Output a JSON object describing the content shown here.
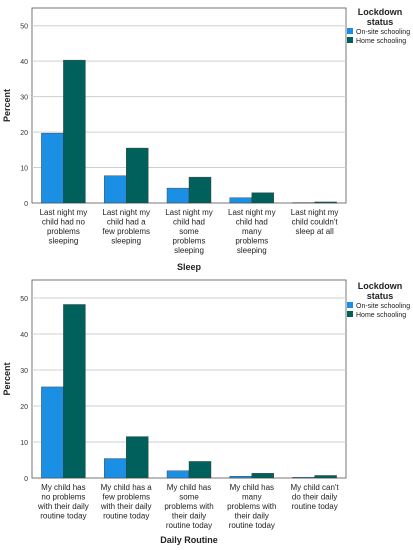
{
  "colors": {
    "onsite": "#1a8fe3",
    "home": "#00605c",
    "grid": "#cfcfcf",
    "axis": "#555555"
  },
  "chart_data": [
    {
      "type": "bar",
      "xlabel": "Sleep",
      "ylabel": "Percent",
      "ylim": [
        0,
        55
      ],
      "yticks": [
        0,
        10,
        20,
        30,
        40,
        50
      ],
      "grid": true,
      "legend_position": "top-right",
      "legend_title": "Lockdown status",
      "categories": [
        "Last night my child had no problems sleeping",
        "Last night my child had a few problems sleeping",
        "Last night my child had some problems sleeping",
        "Last night my child had many problems sleeping",
        "Last night my child couldn't sleep at all"
      ],
      "category_lines": [
        [
          "Last night my",
          "child had no",
          "problems",
          "sleeping"
        ],
        [
          "Last night my",
          "child had a",
          "few problems",
          "sleeping"
        ],
        [
          "Last night my",
          "child had",
          "some",
          "problems",
          "sleeping"
        ],
        [
          "Last night my",
          "child had",
          "many",
          "problems",
          "sleeping"
        ],
        [
          "Last night my",
          "child couldn't",
          "sleep at all"
        ]
      ],
      "series": [
        {
          "name": "On-site schooling",
          "values": [
            19.7,
            7.7,
            4.2,
            1.5,
            0.1
          ]
        },
        {
          "name": "Home schooling",
          "values": [
            40.3,
            15.5,
            7.3,
            2.9,
            0.3
          ]
        }
      ]
    },
    {
      "type": "bar",
      "xlabel": "Daily Routine",
      "ylabel": "Percent",
      "ylim": [
        0,
        55
      ],
      "yticks": [
        0,
        10,
        20,
        30,
        40,
        50
      ],
      "grid": true,
      "legend_position": "top-right",
      "legend_title": "Lockdown status",
      "categories": [
        "My child has no problems with their daily routine today",
        "My child has a few problems with their daily routine today",
        "My child has some problems with their daily routine today",
        "My child has many problems with their daily routine today",
        "My child can't do their daily routine today"
      ],
      "category_lines": [
        [
          "My child has",
          "no problems",
          "with their daily",
          "routine today"
        ],
        [
          "My child has a",
          "few problems",
          "with their daily",
          "routine today"
        ],
        [
          "My child has",
          "some",
          "problems with",
          "their daily",
          "routine today"
        ],
        [
          "My child has",
          "many",
          "problems with",
          "their daily",
          "routine today"
        ],
        [
          "My child can't",
          "do their daily",
          "routine today"
        ]
      ],
      "series": [
        {
          "name": "On-site schooling",
          "values": [
            25.3,
            5.4,
            2.0,
            0.5,
            0.2
          ]
        },
        {
          "name": "Home schooling",
          "values": [
            48.2,
            11.5,
            4.6,
            1.3,
            0.7
          ]
        }
      ]
    }
  ]
}
